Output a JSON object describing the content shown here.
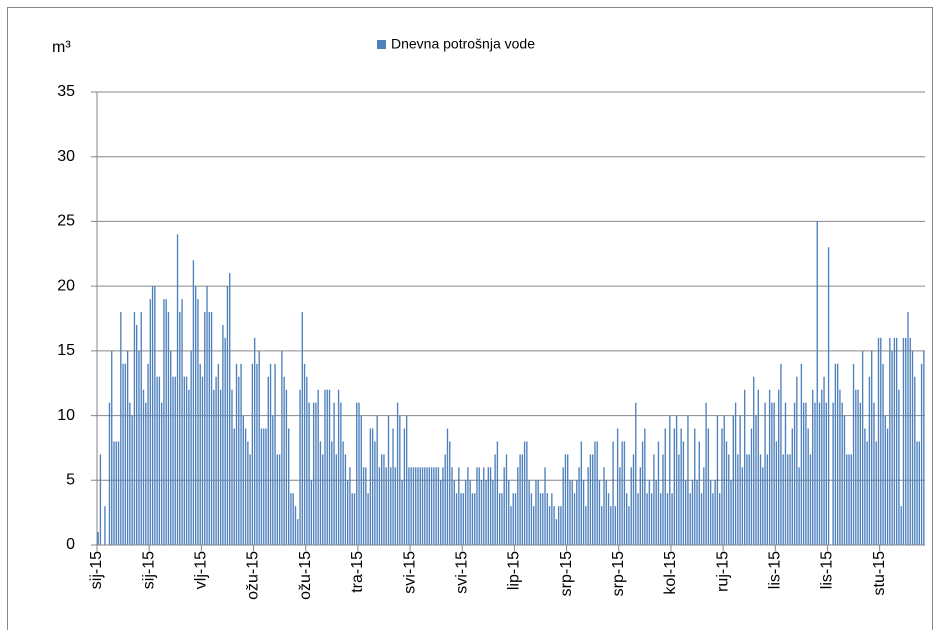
{
  "chart_data": {
    "type": "bar",
    "legend": "Dnevna potrošnja vode",
    "ylabel": "m³",
    "color": "#4f81bd",
    "ylim": [
      0,
      35
    ],
    "yticks": [
      0,
      5,
      10,
      15,
      20,
      25,
      30,
      35
    ],
    "grid": true,
    "legend_position": "top",
    "categories": [
      "sij-15",
      null,
      null,
      null,
      null,
      null,
      null,
      null,
      null,
      null,
      null,
      null,
      null,
      null,
      null,
      null,
      null,
      null,
      null,
      null,
      null,
      null,
      null,
      "sij-15",
      null,
      null,
      null,
      null,
      null,
      null,
      null,
      null,
      null,
      null,
      null,
      null,
      null,
      null,
      null,
      null,
      null,
      null,
      null,
      null,
      null,
      null,
      "vlj-15",
      null,
      null,
      null,
      null,
      null,
      null,
      null,
      null,
      null,
      null,
      null,
      null,
      null,
      null,
      null,
      null,
      null,
      null,
      null,
      null,
      null,
      null,
      "ožu-15",
      null,
      null,
      null,
      null,
      null,
      null,
      null,
      null,
      null,
      null,
      null,
      null,
      null,
      null,
      null,
      null,
      null,
      null,
      null,
      null,
      null,
      null,
      "ožu-15",
      null,
      null,
      null,
      null,
      null,
      null,
      null,
      null,
      null,
      null,
      null,
      null,
      null,
      null,
      null,
      null,
      null,
      null,
      null,
      null,
      null,
      null,
      "tra-15",
      null,
      null,
      null,
      null,
      null,
      null,
      null,
      null,
      null,
      null,
      null,
      null,
      null,
      null,
      null,
      null,
      null,
      null,
      null,
      null,
      null,
      null,
      "svi-15",
      null,
      null,
      null,
      null,
      null,
      null,
      null,
      null,
      null,
      null,
      null,
      null,
      null,
      null,
      null,
      null,
      null,
      null,
      null,
      null,
      null,
      null,
      "svi-15",
      null,
      null,
      null,
      null,
      null,
      null,
      null,
      null,
      null,
      null,
      null,
      null,
      null,
      null,
      null,
      null,
      null,
      null,
      null,
      null,
      null,
      null,
      "lip-15",
      null,
      null,
      null,
      null,
      null,
      null,
      null,
      null,
      null,
      null,
      null,
      null,
      null,
      null,
      null,
      null,
      null,
      null,
      null,
      null,
      null,
      null,
      "srp-15",
      null,
      null,
      null,
      null,
      null,
      null,
      null,
      null,
      null,
      null,
      null,
      null,
      null,
      null,
      null,
      null,
      null,
      null,
      null,
      null,
      null,
      null,
      "srp-15",
      null,
      null,
      null,
      null,
      null,
      null,
      null,
      null,
      null,
      null,
      null,
      null,
      null,
      null,
      null,
      null,
      null,
      null,
      null,
      null,
      null,
      null,
      "kol-15",
      null,
      null,
      null,
      null,
      null,
      null,
      null,
      null,
      null,
      null,
      null,
      null,
      null,
      null,
      null,
      null,
      null,
      null,
      null,
      null,
      null,
      null,
      "ruj-15",
      null,
      null,
      null,
      null,
      null,
      null,
      null,
      null,
      null,
      null,
      null,
      null,
      null,
      null,
      null,
      null,
      null,
      null,
      null,
      null,
      null,
      null,
      "lis-15",
      null,
      null,
      null,
      null,
      null,
      null,
      null,
      null,
      null,
      null,
      null,
      null,
      null,
      null,
      null,
      null,
      null,
      null,
      null,
      null,
      null,
      null,
      "lis-15",
      null,
      null,
      null,
      null,
      null,
      null,
      null,
      null,
      null,
      null,
      null,
      null,
      null,
      null,
      null,
      null,
      null,
      null,
      null,
      null,
      null,
      null,
      "stu-15",
      null,
      null,
      null,
      null,
      null,
      null,
      null,
      null,
      null,
      null,
      null,
      null,
      null,
      null,
      null,
      null,
      null,
      null,
      null
    ],
    "values": [
      1,
      7,
      0,
      3,
      0,
      11,
      15,
      8,
      8,
      8,
      18,
      14,
      14,
      15,
      11,
      10,
      18,
      17,
      15,
      18,
      12,
      11,
      14,
      19,
      20,
      20,
      13,
      13,
      11,
      19,
      19,
      18,
      15,
      13,
      13,
      24,
      18,
      19,
      13,
      13,
      12,
      15,
      22,
      20,
      19,
      14,
      13,
      18,
      20,
      18,
      18,
      12,
      13,
      14,
      12,
      17,
      16,
      20,
      21,
      12,
      9,
      14,
      13,
      14,
      10,
      9,
      8,
      7,
      14,
      16,
      14,
      15,
      9,
      9,
      9,
      13,
      14,
      10,
      14,
      7,
      7,
      15,
      13,
      12,
      9,
      4,
      4,
      3,
      2,
      12,
      18,
      14,
      13,
      11,
      5,
      11,
      11,
      12,
      8,
      7,
      12,
      12,
      12,
      8,
      11,
      7,
      12,
      11,
      8,
      7,
      5,
      6,
      4,
      4,
      11,
      11,
      10,
      6,
      6,
      4,
      9,
      9,
      8,
      10,
      6,
      7,
      7,
      6,
      10,
      6,
      9,
      6,
      11,
      10,
      5,
      9,
      10,
      6,
      6,
      6,
      6,
      6,
      6,
      6,
      6,
      6,
      6,
      6,
      6,
      6,
      6,
      5,
      6,
      7,
      9,
      8,
      6,
      5,
      4,
      6,
      4,
      4,
      5,
      6,
      5,
      4,
      4,
      6,
      6,
      5,
      6,
      5,
      6,
      6,
      5,
      7,
      8,
      4,
      4,
      6,
      7,
      5,
      3,
      4,
      4,
      6,
      7,
      7,
      8,
      8,
      5,
      4,
      3,
      5,
      5,
      4,
      4,
      6,
      4,
      3,
      4,
      3,
      2,
      3,
      3,
      6,
      7,
      7,
      5,
      5,
      4,
      5,
      6,
      8,
      5,
      3,
      6,
      7,
      7,
      8,
      8,
      5,
      3,
      6,
      5,
      4,
      3,
      8,
      3,
      9,
      6,
      8,
      8,
      4,
      3,
      6,
      7,
      11,
      4,
      6,
      8,
      9,
      4,
      5,
      4,
      7,
      5,
      8,
      4,
      7,
      9,
      4,
      10,
      4,
      9,
      10,
      7,
      9,
      8,
      5,
      10,
      4,
      5,
      9,
      5,
      8,
      4,
      6,
      11,
      9,
      5,
      4,
      5,
      10,
      4,
      9,
      10,
      8,
      7,
      5,
      10,
      11,
      7,
      10,
      6,
      12,
      7,
      7,
      9,
      13,
      10,
      12,
      7,
      6,
      11,
      7,
      12,
      11,
      11,
      8,
      12,
      14,
      7,
      11,
      7,
      7,
      9,
      11,
      13,
      6,
      14,
      11,
      11,
      9,
      7,
      12,
      11,
      25,
      11,
      12,
      13,
      11,
      23,
      0,
      11,
      14,
      14,
      12,
      11,
      10,
      7,
      7,
      7,
      14,
      12,
      12,
      11,
      15,
      9,
      8,
      13,
      15,
      11,
      8,
      16,
      16,
      14,
      10,
      9,
      16,
      15,
      16,
      16,
      12,
      3,
      16,
      16,
      18,
      16,
      15,
      13,
      8,
      8,
      14,
      15
    ]
  }
}
